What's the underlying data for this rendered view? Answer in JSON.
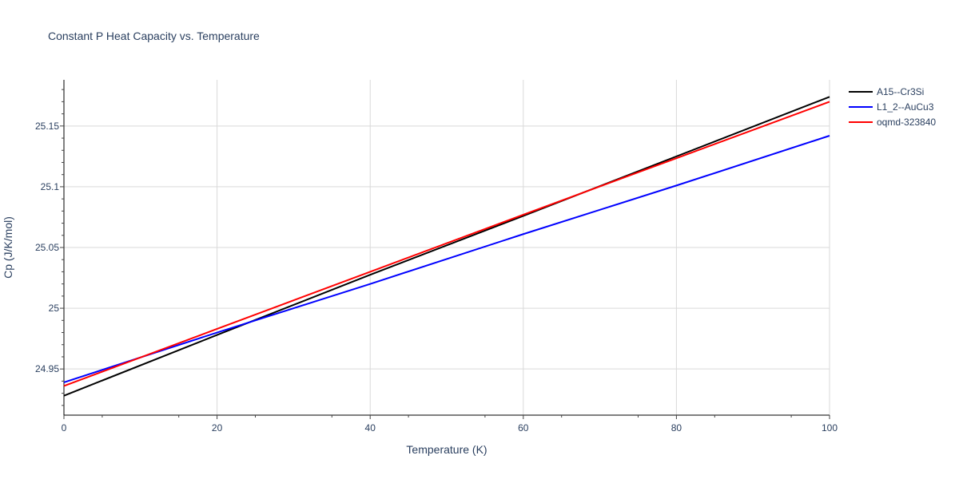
{
  "chart_data": {
    "type": "line",
    "title": "Constant P Heat Capacity vs. Temperature",
    "xlabel": "Temperature (K)",
    "ylabel": "Cp (J/K/mol)",
    "xlim": [
      0,
      100
    ],
    "ylim": [
      24.912,
      25.188
    ],
    "x_ticks": [
      0,
      20,
      40,
      60,
      80,
      100
    ],
    "x_tick_labels": [
      "0",
      "20",
      "40",
      "60",
      "80",
      "100"
    ],
    "y_ticks": [
      24.95,
      25.0,
      25.05,
      25.1,
      25.15
    ],
    "y_tick_labels": [
      "24.95",
      "25",
      "25.05",
      "25.1",
      "25.15"
    ],
    "grid": true,
    "legend_position": "top-right",
    "series": [
      {
        "name": "A15--Cr3Si",
        "color": "#000000",
        "x": [
          0,
          20,
          40,
          60,
          80,
          100
        ],
        "y": [
          24.928,
          24.978,
          25.0275,
          25.076,
          25.125,
          25.174
        ]
      },
      {
        "name": "L1_2--AuCu3",
        "color": "#0000ff",
        "x": [
          0,
          20,
          40,
          60,
          80,
          100
        ],
        "y": [
          24.939,
          24.98,
          25.02,
          25.061,
          25.101,
          25.142
        ]
      },
      {
        "name": "oqmd-323840",
        "color": "#ff0000",
        "x": [
          0,
          20,
          40,
          60,
          80,
          100
        ],
        "y": [
          24.936,
          24.983,
          25.03,
          25.077,
          25.1235,
          25.17
        ]
      }
    ]
  }
}
